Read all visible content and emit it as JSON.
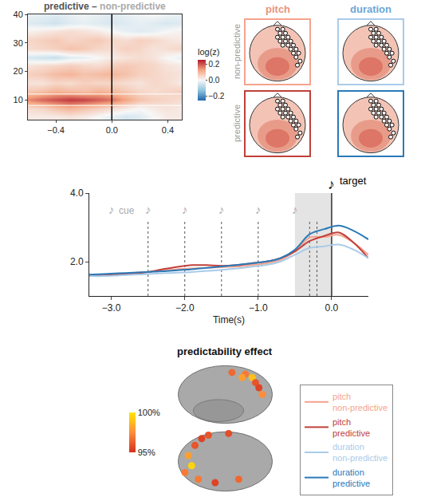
{
  "chart_data": [
    {
      "type": "heatmap",
      "title": [
        {
          "text": "predictive",
          "color": "#555555"
        },
        {
          "text": "–",
          "color": "#555555"
        },
        {
          "text": "non-predictive",
          "color": "#aaaaaa"
        }
      ],
      "x": [
        -0.6,
        -0.5,
        -0.4,
        -0.3,
        -0.2,
        -0.1,
        0.0,
        0.1,
        0.2,
        0.3,
        0.4,
        0.5
      ],
      "y": [
        4,
        7,
        10,
        13,
        16,
        19,
        22,
        25,
        28,
        31,
        34,
        37,
        40
      ],
      "z": [
        [
          0.02,
          0.02,
          0.02,
          0.03,
          0.02,
          0.0,
          -0.02,
          -0.04,
          -0.03,
          0.0,
          0.02,
          0.02
        ],
        [
          0.04,
          0.05,
          0.08,
          0.1,
          0.08,
          0.06,
          0.04,
          0.02,
          0.0,
          0.02,
          0.03,
          0.02
        ],
        [
          0.15,
          0.18,
          0.2,
          0.22,
          0.21,
          0.19,
          0.17,
          0.12,
          0.08,
          0.06,
          0.05,
          0.04
        ],
        [
          0.07,
          0.08,
          0.1,
          0.09,
          0.08,
          0.1,
          0.09,
          0.07,
          0.05,
          0.04,
          0.05,
          0.06
        ],
        [
          0.03,
          0.03,
          0.05,
          0.04,
          0.06,
          0.05,
          0.05,
          0.04,
          0.03,
          0.05,
          0.04,
          0.02
        ],
        [
          0.06,
          0.07,
          0.09,
          0.1,
          0.08,
          0.09,
          0.1,
          0.08,
          0.06,
          0.05,
          0.04,
          0.03
        ],
        [
          0.03,
          0.04,
          0.05,
          0.06,
          0.05,
          0.04,
          0.06,
          0.07,
          0.06,
          0.05,
          0.03,
          0.02
        ],
        [
          -0.04,
          -0.05,
          -0.06,
          -0.03,
          -0.02,
          0.0,
          0.02,
          0.03,
          0.04,
          0.03,
          0.0,
          -0.02
        ],
        [
          0.04,
          0.05,
          0.06,
          0.08,
          0.07,
          0.05,
          0.04,
          0.06,
          0.05,
          0.03,
          0.04,
          0.05
        ],
        [
          0.05,
          0.06,
          0.07,
          0.05,
          0.06,
          0.07,
          0.05,
          0.04,
          0.06,
          0.05,
          0.03,
          0.02
        ],
        [
          0.01,
          0.02,
          0.03,
          0.04,
          0.03,
          0.02,
          0.0,
          -0.02,
          -0.03,
          -0.02,
          0.0,
          0.01
        ],
        [
          -0.03,
          -0.04,
          -0.05,
          -0.03,
          -0.02,
          -0.03,
          -0.04,
          -0.03,
          -0.02,
          -0.03,
          -0.04,
          -0.03
        ],
        [
          -0.02,
          -0.02,
          -0.03,
          -0.02,
          -0.01,
          -0.02,
          -0.03,
          -0.02,
          -0.01,
          0.0,
          -0.01,
          -0.02
        ]
      ],
      "xlim": [
        -0.6,
        0.5
      ],
      "ylim": [
        3,
        40
      ],
      "xticks": [
        {
          "value": -0.4,
          "label": "−0.4"
        },
        {
          "value": 0,
          "label": "0.0"
        },
        {
          "value": 0.4,
          "label": "0.4"
        }
      ],
      "yticks": [
        10,
        20,
        30,
        40
      ],
      "vlines": [
        0
      ],
      "hlines": [
        8,
        12
      ],
      "colorbar": {
        "title": "log(z)",
        "range": [
          -0.25,
          0.25
        ],
        "ticks": [
          {
            "value": 0.2,
            "label": "0.2"
          },
          {
            "value": 0,
            "label": "0.0"
          },
          {
            "value": -0.2,
            "label": "−0.2"
          }
        ]
      }
    },
    {
      "type": "topography",
      "columns": [
        {
          "label": "pitch",
          "color": "#e8937d"
        },
        {
          "label": "duration",
          "color": "#6ea6d8"
        }
      ],
      "rows": [
        "non-predictive",
        "predictive"
      ],
      "colors": [
        [
          "#f4a38e",
          "#a9cbe9"
        ],
        [
          "#c0403a",
          "#2a7ab9"
        ]
      ],
      "electrodes": {
        "x": [
          0.0,
          0.2,
          0.1,
          0.3,
          0.0,
          0.2,
          0.4,
          0.1,
          0.3,
          0.5,
          0.2,
          0.4,
          0.6,
          0.5,
          0.7,
          0.6,
          0.8,
          0.7,
          0.85,
          0.75
        ],
        "y": [
          0.85,
          0.85,
          0.7,
          0.7,
          0.55,
          0.55,
          0.55,
          0.4,
          0.4,
          0.4,
          0.25,
          0.25,
          0.25,
          0.1,
          0.1,
          -0.05,
          -0.05,
          -0.2,
          -0.35,
          -0.5
        ]
      },
      "tick_labels": false
    },
    {
      "type": "line",
      "xlabel": "Time(s)",
      "x": [
        -3.3,
        -3.1,
        -2.9,
        -2.7,
        -2.5,
        -2.3,
        -2.1,
        -1.9,
        -1.7,
        -1.5,
        -1.3,
        -1.1,
        -0.9,
        -0.7,
        -0.5,
        -0.3,
        -0.1,
        0.1,
        0.3,
        0.5
      ],
      "series": [
        {
          "name": "pitch non-predictive",
          "color": "#f4a38e",
          "values": [
            1.6,
            1.62,
            1.64,
            1.67,
            1.7,
            1.74,
            1.78,
            1.8,
            1.82,
            1.84,
            1.86,
            1.9,
            1.95,
            2.05,
            2.3,
            2.7,
            2.72,
            2.78,
            2.55,
            2.2
          ]
        },
        {
          "name": "pitch predictive",
          "color": "#c0403a",
          "values": [
            1.58,
            1.6,
            1.62,
            1.65,
            1.7,
            1.78,
            1.85,
            1.9,
            1.9,
            1.88,
            1.9,
            1.95,
            2.0,
            2.1,
            2.3,
            2.6,
            2.75,
            2.85,
            2.55,
            2.1
          ]
        },
        {
          "name": "duration non-predictive",
          "color": "#a9cbe9",
          "values": [
            1.58,
            1.58,
            1.6,
            1.62,
            1.64,
            1.66,
            1.68,
            1.7,
            1.73,
            1.76,
            1.8,
            1.85,
            1.9,
            2.0,
            2.2,
            2.4,
            2.45,
            2.5,
            2.35,
            2.1
          ]
        },
        {
          "name": "duration predictive",
          "color": "#2a7ab9",
          "values": [
            1.62,
            1.64,
            1.66,
            1.68,
            1.7,
            1.72,
            1.75,
            1.78,
            1.82,
            1.86,
            1.9,
            1.95,
            2.0,
            2.1,
            2.35,
            2.8,
            2.95,
            3.05,
            2.9,
            2.65
          ]
        }
      ],
      "xlim": [
        -3.3,
        0.5
      ],
      "ylim": [
        1.0,
        4.0
      ],
      "xticks": [
        {
          "value": -3,
          "label": "−3.0"
        },
        {
          "value": -2,
          "label": "−2.0"
        },
        {
          "value": -1,
          "label": "−1.0"
        },
        {
          "value": 0,
          "label": "0.0"
        }
      ],
      "yticks": [
        {
          "value": 2,
          "label": "2.0"
        },
        {
          "value": 4,
          "label": "4.0"
        }
      ],
      "shaded": [
        -0.5,
        0
      ],
      "dotted_lines": [
        -2.5,
        -2.0,
        -1.5,
        -1.0,
        -0.3,
        -0.2
      ],
      "solid_lines": [
        0
      ],
      "note_symbol": "♪",
      "cue": {
        "x": [
          -3.0,
          -2.5,
          -2.0,
          -1.5,
          -1.0,
          -0.5
        ],
        "label": "cue"
      },
      "target": {
        "x": 0,
        "label": "target"
      },
      "legend": "bottom right"
    },
    {
      "type": "scatter",
      "title": "predictability effect",
      "x": [
        0.6,
        0.8,
        0.9,
        0.5,
        1.0,
        0.2,
        1.1,
        -1.1,
        -1.0,
        -0.9,
        -1.2,
        -0.7,
        -0.5,
        -0.8,
        -0.3,
        0.4,
        0.1
      ],
      "y": [
        1.6,
        1.5,
        1.35,
        1.5,
        1.2,
        1.65,
        1.0,
        -0.8,
        -1.1,
        -0.5,
        -1.3,
        -0.3,
        -0.2,
        -1.5,
        -1.6,
        -1.5,
        -0.15
      ],
      "values": [
        97,
        99,
        96,
        98,
        95.5,
        96.5,
        97.5,
        98,
        99.5,
        96,
        97,
        95.5,
        96,
        97,
        95.5,
        96.5,
        95.8
      ],
      "colorbar": {
        "range": [
          95,
          100
        ],
        "ticks": [
          {
            "value": 95,
            "label": "95%"
          },
          {
            "value": 100,
            "label": "100%"
          }
        ]
      },
      "tick_labels": false
    }
  ]
}
